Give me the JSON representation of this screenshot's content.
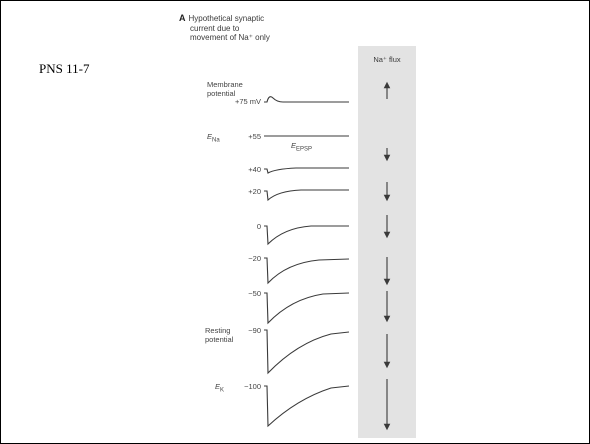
{
  "slide": {
    "label": "PNS 11-7"
  },
  "panel": {
    "letter": "A",
    "title_lines": [
      "Hypothetical synaptic",
      "current due to",
      "movement of Na⁺ only"
    ],
    "flux_header": "Na⁺ flux"
  },
  "labels": {
    "membrane_potential": [
      "Membrane",
      "potential"
    ],
    "resting_potential": [
      "Resting",
      "potential"
    ],
    "e_na": "E",
    "e_na_sub": "Na",
    "e_epsp": "E",
    "e_epsp_sub": "EPSP",
    "e_k": "E",
    "e_k_sub": "K"
  },
  "traces": [
    {
      "potential": "+75 mV",
      "flux": "up"
    },
    {
      "potential": "+55",
      "flux": "none"
    },
    {
      "potential": "+40",
      "flux": "down"
    },
    {
      "potential": "+20",
      "flux": "down"
    },
    {
      "potential": "0",
      "flux": "down"
    },
    {
      "potential": "−20",
      "flux": "down"
    },
    {
      "potential": "−50",
      "flux": "down"
    },
    {
      "potential": "−90",
      "flux": "down"
    },
    {
      "potential": "−100",
      "flux": "down"
    }
  ]
}
